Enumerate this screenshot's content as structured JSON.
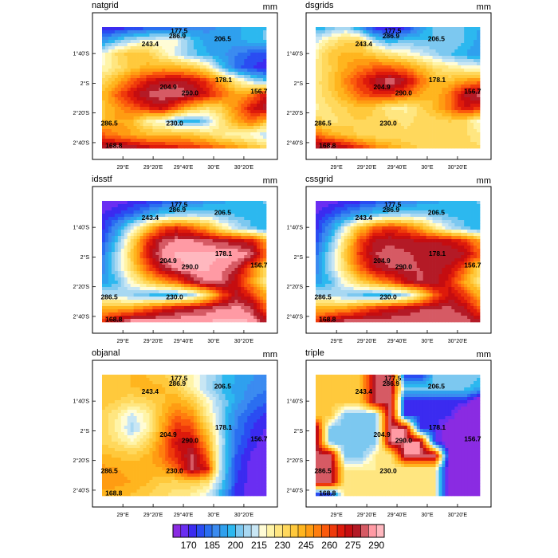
{
  "chart_data": {
    "type": "contour-panel",
    "units": "mm",
    "x_ticks": [
      "29°E",
      "29°20'E",
      "29°40'E",
      "30°E",
      "30°20'E"
    ],
    "y_ticks": [
      "1°40'S",
      "2°S",
      "2°20'S",
      "2°40'S"
    ],
    "stations": [
      {
        "value": "177.5",
        "lon": 29.62,
        "lat": -1.41
      },
      {
        "value": "286.9",
        "lon": 29.6,
        "lat": -1.47
      },
      {
        "value": "206.5",
        "lon": 30.1,
        "lat": -1.5
      },
      {
        "value": "243.4",
        "lon": 29.3,
        "lat": -1.56
      },
      {
        "value": "178.1",
        "lon": 30.11,
        "lat": -1.96
      },
      {
        "value": "204.9",
        "lon": 29.5,
        "lat": -2.04
      },
      {
        "value": "290.0",
        "lon": 29.74,
        "lat": -2.11
      },
      {
        "value": "156.7",
        "lon": 30.5,
        "lat": -2.09
      },
      {
        "value": "286.5",
        "lon": 28.85,
        "lat": -2.45
      },
      {
        "value": "230.0",
        "lon": 29.57,
        "lat": -2.45
      },
      {
        "value": "168.8",
        "lon": 28.9,
        "lat": -2.7
      }
    ],
    "panels": [
      {
        "title": "natgrid",
        "units": "mm",
        "field": [
          [
            172,
            175,
            178,
            181,
            184,
            187,
            190,
            193,
            196,
            199,
            202,
            205
          ],
          [
            195,
            205,
            215,
            221,
            222,
            221,
            206,
            198,
            197,
            199,
            202,
            206
          ],
          [
            220,
            236,
            243,
            241,
            229,
            218,
            207,
            200,
            197,
            190,
            185,
            182
          ],
          [
            225,
            233,
            242,
            247,
            249,
            248,
            243,
            232,
            205,
            188,
            180,
            176
          ],
          [
            236,
            248,
            262,
            274,
            280,
            282,
            278,
            268,
            250,
            230,
            215,
            205
          ],
          [
            245,
            262,
            276,
            286,
            290,
            290,
            286,
            275,
            262,
            250,
            255,
            276
          ],
          [
            242,
            252,
            262,
            271,
            278,
            262,
            244,
            235,
            240,
            256,
            275,
            283
          ],
          [
            245,
            250,
            248,
            228,
            222,
            205,
            200,
            210,
            232,
            250,
            260,
            245
          ],
          [
            262,
            256,
            250,
            246,
            246,
            246,
            244,
            238,
            230,
            228,
            222,
            215
          ],
          [
            285,
            290,
            286,
            280,
            276,
            274,
            270,
            266,
            260,
            254,
            246,
            240
          ]
        ]
      },
      {
        "title": "dsgrids",
        "units": "mm",
        "field": [
          [
            198,
            205,
            212,
            192,
            176,
            172,
            176,
            196,
            207,
            210,
            205,
            200
          ],
          [
            218,
            230,
            238,
            240,
            210,
            200,
            206,
            204,
            205,
            210,
            205,
            198
          ],
          [
            228,
            242,
            247,
            246,
            240,
            232,
            226,
            220,
            212,
            205,
            200,
            195
          ],
          [
            230,
            240,
            250,
            257,
            262,
            262,
            256,
            245,
            235,
            230,
            224,
            222
          ],
          [
            232,
            242,
            256,
            270,
            282,
            290,
            281,
            262,
            246,
            244,
            252,
            256
          ],
          [
            232,
            240,
            250,
            262,
            270,
            270,
            262,
            250,
            245,
            260,
            281,
            288
          ],
          [
            228,
            235,
            240,
            245,
            240,
            230,
            228,
            238,
            246,
            260,
            275,
            270
          ],
          [
            240,
            232,
            238,
            240,
            238,
            236,
            234,
            236,
            238,
            240,
            236,
            222
          ],
          [
            262,
            250,
            244,
            238,
            236,
            236,
            236,
            236,
            236,
            236,
            236,
            232
          ],
          [
            286,
            290,
            280,
            270,
            258,
            250,
            244,
            240,
            236,
            236,
            236,
            236
          ]
        ]
      },
      {
        "title": "idsstf",
        "units": "mm",
        "field": [
          [
            170,
            172,
            175,
            178,
            182,
            186,
            190,
            194,
            198,
            202,
            204,
            206
          ],
          [
            175,
            180,
            186,
            196,
            205,
            210,
            212,
            212,
            206,
            204,
            202,
            200
          ],
          [
            178,
            195,
            218,
            242,
            262,
            270,
            262,
            250,
            230,
            215,
            206,
            200
          ],
          [
            182,
            205,
            236,
            268,
            287,
            291,
            292,
            288,
            284,
            280,
            276,
            252
          ],
          [
            188,
            212,
            242,
            272,
            292,
            296,
            296,
            296,
            296,
            296,
            289,
            262
          ],
          [
            192,
            212,
            238,
            262,
            282,
            292,
            296,
            296,
            292,
            284,
            262,
            238
          ],
          [
            195,
            205,
            225,
            240,
            252,
            262,
            280,
            292,
            290,
            276,
            252,
            230
          ],
          [
            215,
            215,
            210,
            205,
            203,
            204,
            212,
            232,
            262,
            282,
            270,
            248
          ],
          [
            248,
            248,
            252,
            260,
            270,
            278,
            282,
            286,
            290,
            292,
            286,
            262
          ],
          [
            270,
            286,
            296,
            296,
            296,
            296,
            296,
            296,
            296,
            296,
            296,
            282
          ]
        ]
      },
      {
        "title": "cssgrid",
        "units": "mm",
        "field": [
          [
            170,
            172,
            175,
            178,
            182,
            186,
            190,
            194,
            198,
            202,
            204,
            206
          ],
          [
            175,
            182,
            190,
            198,
            205,
            210,
            212,
            212,
            206,
            204,
            202,
            200
          ],
          [
            178,
            195,
            220,
            244,
            262,
            270,
            262,
            250,
            230,
            215,
            206,
            200
          ],
          [
            182,
            205,
            236,
            266,
            282,
            284,
            282,
            280,
            280,
            278,
            270,
            252
          ],
          [
            188,
            212,
            242,
            270,
            285,
            288,
            286,
            284,
            284,
            285,
            282,
            262
          ],
          [
            192,
            212,
            238,
            262,
            280,
            285,
            286,
            285,
            282,
            278,
            262,
            238
          ],
          [
            195,
            205,
            225,
            240,
            252,
            262,
            278,
            286,
            283,
            272,
            250,
            230
          ],
          [
            215,
            215,
            210,
            205,
            203,
            204,
            212,
            232,
            262,
            278,
            268,
            248
          ],
          [
            248,
            248,
            252,
            260,
            270,
            276,
            280,
            284,
            286,
            286,
            280,
            262
          ],
          [
            270,
            284,
            290,
            290,
            290,
            290,
            290,
            290,
            290,
            290,
            290,
            282
          ]
        ]
      },
      {
        "title": "objanal",
        "units": "mm",
        "field": [
          [
            243,
            244,
            245,
            245,
            242,
            234,
            226,
            216,
            206,
            200,
            196,
            190
          ],
          [
            242,
            243,
            245,
            246,
            246,
            240,
            228,
            214,
            204,
            198,
            194,
            190
          ],
          [
            242,
            240,
            235,
            238,
            244,
            250,
            242,
            226,
            210,
            198,
            190,
            186
          ],
          [
            240,
            230,
            218,
            228,
            246,
            260,
            254,
            232,
            210,
            192,
            184,
            178
          ],
          [
            238,
            228,
            212,
            226,
            250,
            270,
            266,
            242,
            212,
            190,
            180,
            174
          ],
          [
            240,
            234,
            226,
            236,
            256,
            276,
            278,
            252,
            214,
            188,
            178,
            172
          ],
          [
            246,
            244,
            242,
            246,
            258,
            272,
            286,
            262,
            212,
            184,
            174,
            170
          ],
          [
            252,
            250,
            248,
            248,
            250,
            262,
            286,
            276,
            212,
            182,
            172,
            170
          ],
          [
            254,
            252,
            250,
            246,
            240,
            238,
            240,
            235,
            208,
            180,
            172,
            170
          ],
          [
            248,
            246,
            244,
            240,
            236,
            232,
            228,
            220,
            200,
            178,
            172,
            170
          ]
        ]
      },
      {
        "title": "triple",
        "units": "mm",
        "field": [
          [
            243,
            243,
            243,
            243,
            287,
            287,
            178,
            178,
            207,
            207,
            207,
            207
          ],
          [
            243,
            243,
            243,
            243,
            287,
            287,
            207,
            207,
            207,
            207,
            207,
            200
          ],
          [
            243,
            243,
            243,
            243,
            287,
            287,
            178,
            178,
            178,
            178,
            178,
            157
          ],
          [
            243,
            243,
            205,
            205,
            205,
            290,
            178,
            178,
            178,
            178,
            157,
            157
          ],
          [
            287,
            205,
            205,
            205,
            205,
            290,
            290,
            178,
            178,
            157,
            157,
            157
          ],
          [
            287,
            205,
            205,
            205,
            205,
            290,
            290,
            290,
            178,
            157,
            157,
            157
          ],
          [
            287,
            287,
            205,
            205,
            230,
            230,
            290,
            290,
            290,
            157,
            157,
            157
          ],
          [
            287,
            287,
            230,
            230,
            230,
            230,
            230,
            230,
            230,
            157,
            157,
            157
          ],
          [
            287,
            287,
            230,
            230,
            230,
            230,
            230,
            230,
            230,
            157,
            157,
            157
          ],
          [
            169,
            169,
            230,
            230,
            230,
            230,
            230,
            230,
            230,
            157,
            157,
            157
          ]
        ]
      }
    ],
    "colorbar": {
      "labels": [
        "170",
        "185",
        "200",
        "215",
        "230",
        "245",
        "260",
        "275",
        "290"
      ],
      "levels": [
        165,
        170,
        175,
        180,
        185,
        190,
        195,
        200,
        205,
        210,
        215,
        220,
        225,
        230,
        235,
        240,
        245,
        250,
        255,
        260,
        265,
        270,
        275,
        280,
        285,
        290,
        295
      ],
      "colors": [
        "#8a2be2",
        "#6a2ef2",
        "#3b2bf0",
        "#2a4cf2",
        "#2a6ef0",
        "#3b8bf0",
        "#2fa0ee",
        "#2cb8ef",
        "#7cc8f0",
        "#a8d8f2",
        "#c8e6f4",
        "#fffcd6",
        "#fff4a8",
        "#ffe680",
        "#ffd85c",
        "#ffc93c",
        "#ffb51e",
        "#ff9c12",
        "#ff7e0e",
        "#fb5a0c",
        "#ef3a0b",
        "#de1a0b",
        "#c50d10",
        "#b41a26",
        "#d65a64",
        "#ff9aa4",
        "#ffb8bf"
      ]
    }
  }
}
